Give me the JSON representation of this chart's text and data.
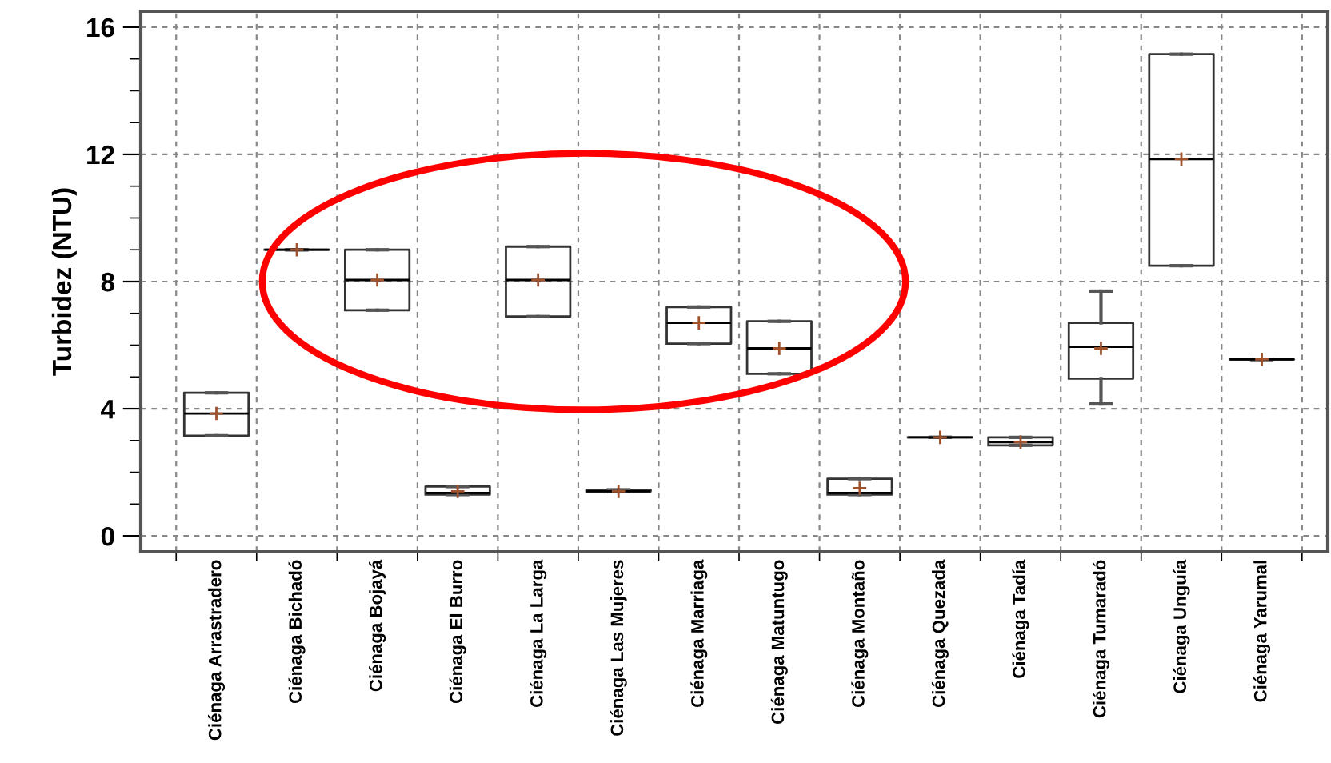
{
  "chart_data": {
    "type": "box",
    "ylabel": "Turbidez (NTU)",
    "categories": [
      "Ciénaga Arrastradero",
      "Ciénaga Bichadó",
      "Ciénaga Bojayá",
      "Ciénaga El Burro",
      "Ciénaga La Larga",
      "Ciénaga Las Mujeres",
      "Ciénaga Marriaga",
      "Ciénaga Matuntugo",
      "Ciénaga Montaño",
      "Ciénaga Quezada",
      "Ciénaga Tadía",
      "Ciénaga Tumaradó",
      "Ciénaga Unguía",
      "Ciénaga Yarumal"
    ],
    "boxes": [
      {
        "low": 3.15,
        "q1": 3.15,
        "median": 3.85,
        "q3": 4.5,
        "high": 4.5,
        "mean": 3.85
      },
      {
        "low": 9.0,
        "q1": 9.0,
        "median": 9.0,
        "q3": 9.0,
        "high": 9.0,
        "mean": 9.0
      },
      {
        "low": 7.1,
        "q1": 7.1,
        "median": 8.05,
        "q3": 9.0,
        "high": 9.0,
        "mean": 8.05
      },
      {
        "low": 1.3,
        "q1": 1.3,
        "median": 1.35,
        "q3": 1.55,
        "high": 1.55,
        "mean": 1.4
      },
      {
        "low": 6.9,
        "q1": 6.9,
        "median": 8.05,
        "q3": 9.1,
        "high": 9.1,
        "mean": 8.05
      },
      {
        "low": 1.4,
        "q1": 1.4,
        "median": 1.4,
        "q3": 1.45,
        "high": 1.45,
        "mean": 1.4
      },
      {
        "low": 6.05,
        "q1": 6.05,
        "median": 6.7,
        "q3": 7.2,
        "high": 7.2,
        "mean": 6.7
      },
      {
        "low": 5.1,
        "q1": 5.1,
        "median": 5.9,
        "q3": 6.75,
        "high": 6.75,
        "mean": 5.9
      },
      {
        "low": 1.3,
        "q1": 1.3,
        "median": 1.35,
        "q3": 1.8,
        "high": 1.8,
        "mean": 1.5
      },
      {
        "low": 3.1,
        "q1": 3.1,
        "median": 3.1,
        "q3": 3.1,
        "high": 3.1,
        "mean": 3.1
      },
      {
        "low": 2.85,
        "q1": 2.85,
        "median": 2.95,
        "q3": 3.1,
        "high": 3.1,
        "mean": 2.95
      },
      {
        "low": 4.15,
        "q1": 4.95,
        "median": 5.95,
        "q3": 6.7,
        "high": 7.7,
        "mean": 5.9
      },
      {
        "low": 8.5,
        "q1": 8.5,
        "median": 11.85,
        "q3": 15.15,
        "high": 15.15,
        "mean": 11.85
      },
      {
        "low": 5.55,
        "q1": 5.55,
        "median": 5.55,
        "q3": 5.55,
        "high": 5.55,
        "mean": 5.55
      }
    ],
    "ylim": [
      -0.5,
      16.5
    ],
    "yticks": [
      0,
      4,
      8,
      12,
      16
    ],
    "grid": true,
    "legend": false
  }
}
